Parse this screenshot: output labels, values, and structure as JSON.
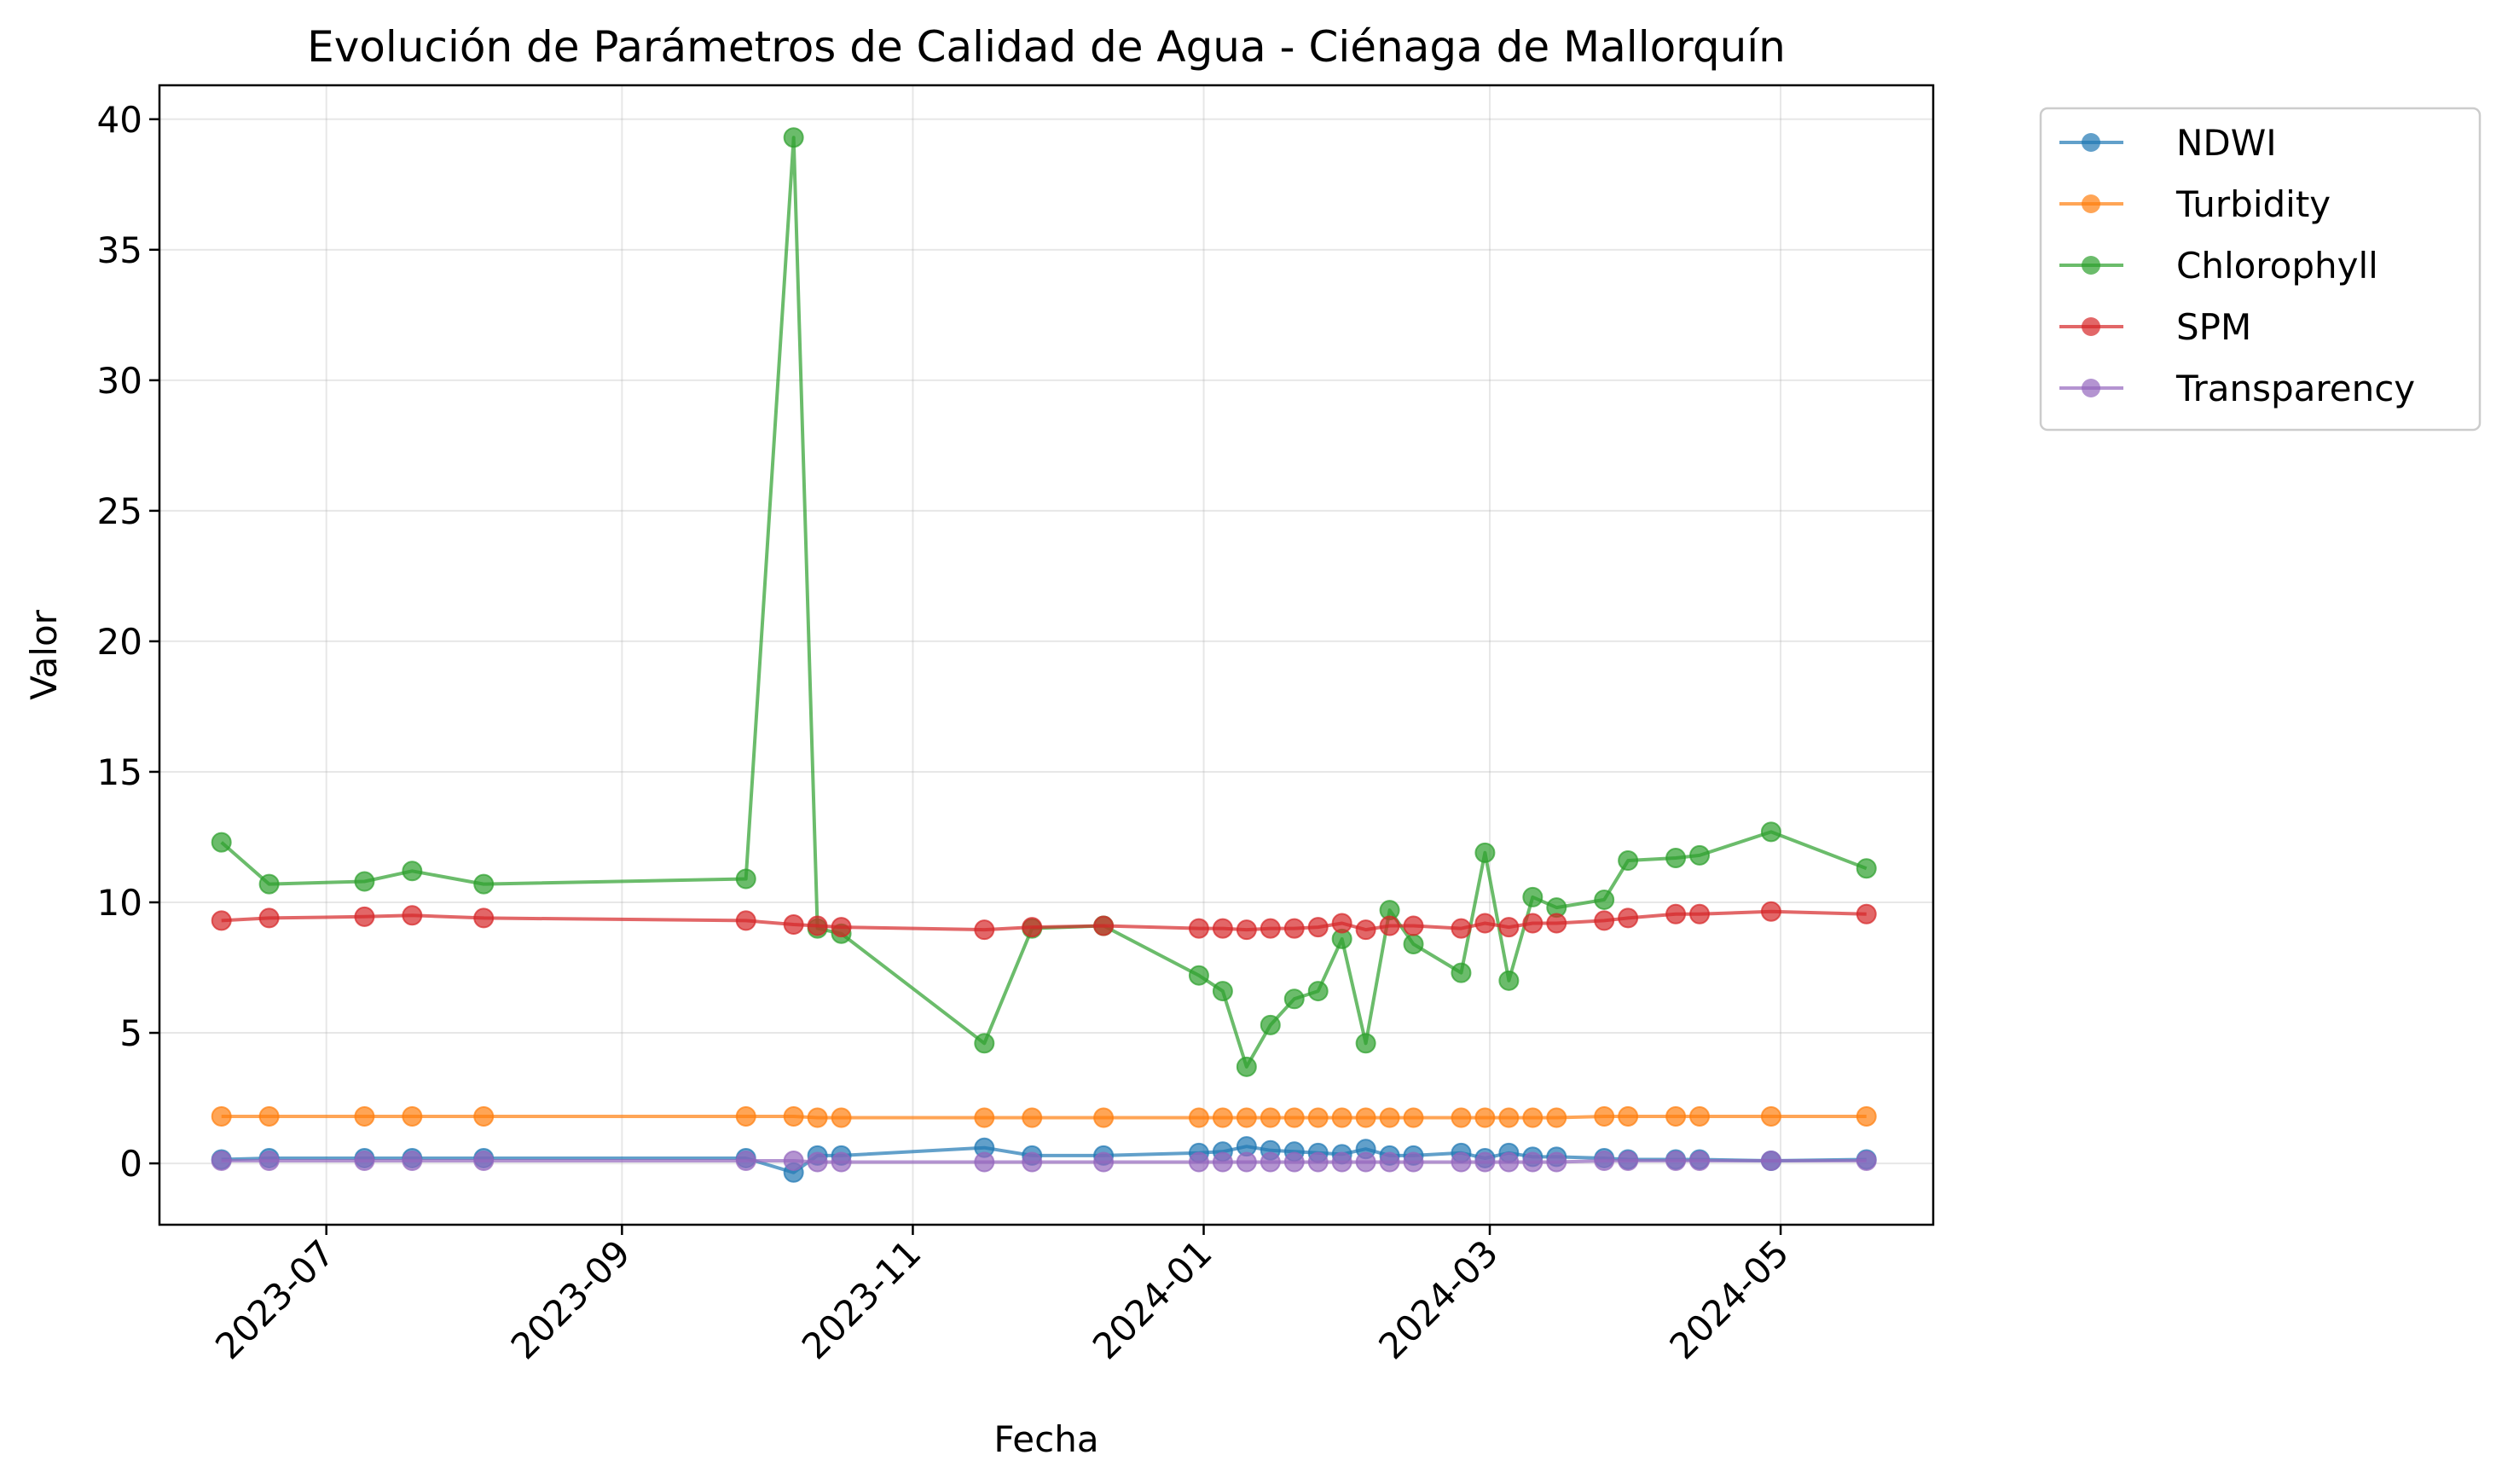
{
  "chart_data": {
    "type": "line",
    "title": "Evolución de Parámetros de Calidad de Agua - Ciénaga de Mallorquín",
    "xlabel": "Fecha",
    "ylabel": "Valor",
    "x_ticks": [
      "2023-07",
      "2023-09",
      "2023-11",
      "2024-01",
      "2024-03",
      "2024-05"
    ],
    "y_ticks": [
      "0",
      "5",
      "10",
      "15",
      "20",
      "25",
      "30",
      "35",
      "40"
    ],
    "xlim": [
      "2023-05-27",
      "2024-06-02"
    ],
    "ylim": [
      -2.35,
      41.3
    ],
    "grid": true,
    "legend_position": "outside-top-right",
    "dates": [
      "2023-06-09",
      "2023-06-19",
      "2023-07-09",
      "2023-07-19",
      "2023-08-03",
      "2023-09-27",
      "2023-10-07",
      "2023-10-12",
      "2023-10-17",
      "2023-11-16",
      "2023-11-26",
      "2023-12-11",
      "2023-12-31",
      "2024-01-05",
      "2024-01-10",
      "2024-01-15",
      "2024-01-20",
      "2024-01-25",
      "2024-01-30",
      "2024-02-04",
      "2024-02-09",
      "2024-02-14",
      "2024-02-24",
      "2024-02-29",
      "2024-03-05",
      "2024-03-10",
      "2024-03-15",
      "2024-03-25",
      "2024-03-30",
      "2024-04-09",
      "2024-04-14",
      "2024-04-29",
      "2024-05-19"
    ],
    "series": [
      {
        "name": "NDWI",
        "color": "#1f77b4",
        "values": [
          0.15,
          0.2,
          0.2,
          0.2,
          0.2,
          0.2,
          -0.35,
          0.3,
          0.3,
          0.6,
          0.3,
          0.3,
          0.4,
          0.45,
          0.65,
          0.5,
          0.45,
          0.4,
          0.35,
          0.55,
          0.3,
          0.3,
          0.4,
          0.2,
          0.4,
          0.25,
          0.25,
          0.2,
          0.15,
          0.15,
          0.15,
          0.1,
          0.15
        ]
      },
      {
        "name": "Turbidity",
        "color": "#ff7f0e",
        "values": [
          1.8,
          1.8,
          1.8,
          1.8,
          1.8,
          1.8,
          1.8,
          1.75,
          1.75,
          1.75,
          1.75,
          1.75,
          1.75,
          1.75,
          1.75,
          1.75,
          1.75,
          1.75,
          1.75,
          1.75,
          1.75,
          1.75,
          1.75,
          1.75,
          1.75,
          1.75,
          1.75,
          1.8,
          1.8,
          1.8,
          1.8,
          1.8,
          1.8
        ]
      },
      {
        "name": "Chlorophyll",
        "color": "#2ca02c",
        "values": [
          12.3,
          10.7,
          10.8,
          11.2,
          10.7,
          10.9,
          39.3,
          9.0,
          8.8,
          4.6,
          9.0,
          9.1,
          7.2,
          6.6,
          3.7,
          5.3,
          6.3,
          6.6,
          8.6,
          4.6,
          9.7,
          8.4,
          7.3,
          11.9,
          7.0,
          10.2,
          9.8,
          10.1,
          11.6,
          11.7,
          11.8,
          12.7,
          11.3
        ]
      },
      {
        "name": "SPM",
        "color": "#d62728",
        "values": [
          9.3,
          9.4,
          9.45,
          9.5,
          9.4,
          9.3,
          9.15,
          9.1,
          9.05,
          8.95,
          9.05,
          9.1,
          9.0,
          9.0,
          8.95,
          9.0,
          9.0,
          9.05,
          9.2,
          8.95,
          9.1,
          9.1,
          9.0,
          9.2,
          9.05,
          9.2,
          9.2,
          9.3,
          9.4,
          9.55,
          9.55,
          9.65,
          9.55
        ]
      },
      {
        "name": "Transparency",
        "color": "#9467bd",
        "values": [
          0.1,
          0.1,
          0.1,
          0.1,
          0.1,
          0.1,
          0.1,
          0.05,
          0.05,
          0.05,
          0.05,
          0.05,
          0.05,
          0.05,
          0.05,
          0.05,
          0.05,
          0.05,
          0.05,
          0.05,
          0.05,
          0.05,
          0.05,
          0.05,
          0.05,
          0.05,
          0.05,
          0.1,
          0.1,
          0.1,
          0.1,
          0.1,
          0.1
        ]
      }
    ]
  }
}
